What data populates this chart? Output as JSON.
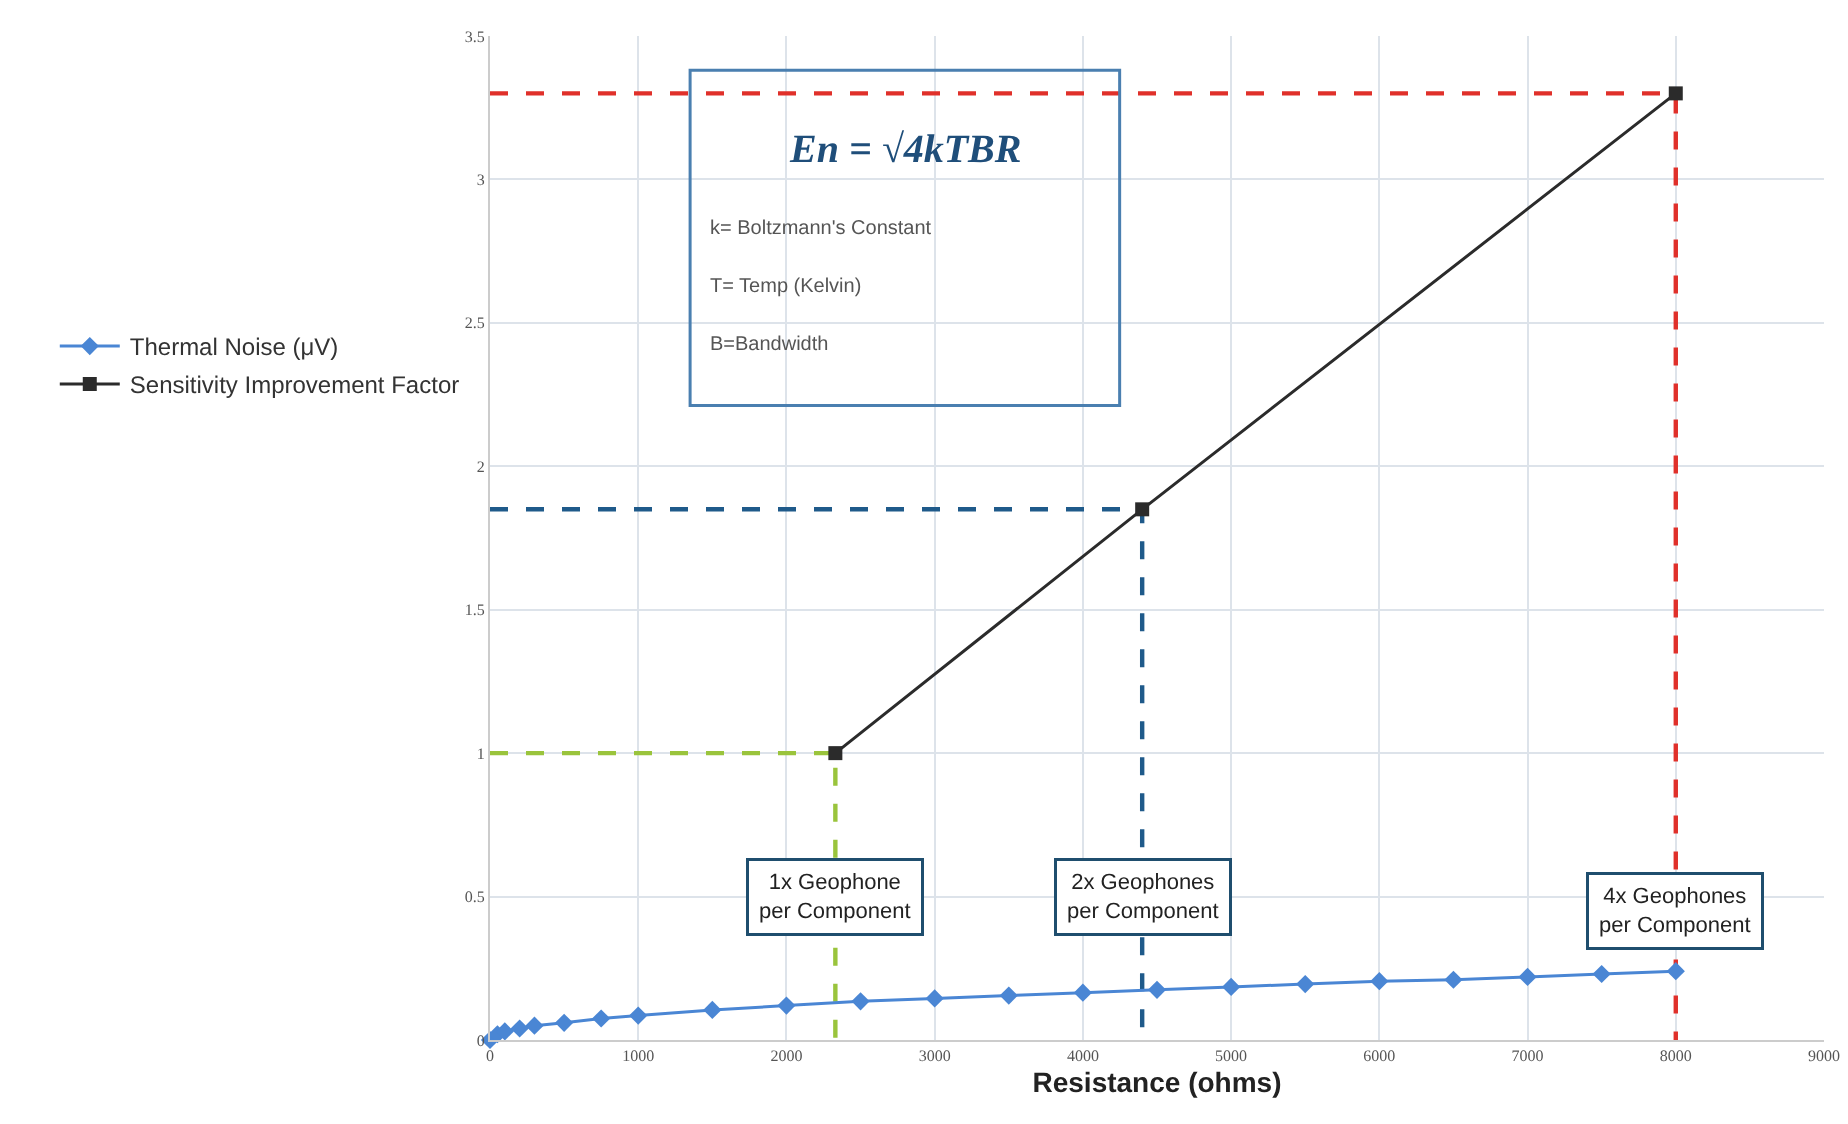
{
  "chart_data": {
    "type": "line",
    "xlabel": "Resistance (ohms)",
    "xlim": [
      0,
      9000
    ],
    "xticks": [
      0,
      1000,
      2000,
      3000,
      4000,
      5000,
      6000,
      7000,
      8000,
      9000
    ],
    "ylim": [
      0,
      3.5
    ],
    "yticks": [
      0,
      0.5,
      1,
      1.5,
      2,
      2.5,
      3,
      3.5
    ],
    "grid": true,
    "legend": "left",
    "series": [
      {
        "name": "Thermal Noise (μV)",
        "color": "#4a86d4",
        "marker": "diamond",
        "x": [
          0,
          50,
          100,
          200,
          300,
          500,
          750,
          1000,
          1500,
          2000,
          2500,
          3000,
          3500,
          4000,
          4500,
          5000,
          5500,
          6000,
          6500,
          7000,
          7500,
          8000
        ],
        "values": [
          0,
          0.02,
          0.03,
          0.04,
          0.05,
          0.06,
          0.075,
          0.085,
          0.105,
          0.12,
          0.135,
          0.145,
          0.155,
          0.165,
          0.175,
          0.185,
          0.195,
          0.205,
          0.21,
          0.22,
          0.23,
          0.24
        ]
      },
      {
        "name": "Sensitivity Improvement Factor",
        "color": "#2b2b2b",
        "marker": "square",
        "x": [
          2330,
          4400,
          8000
        ],
        "values": [
          1,
          1.85,
          3.3
        ]
      },
      {
        "color": "#9ac43c",
        "marker": "none",
        "line_style": "dashed",
        "x": [
          0,
          2330,
          2330
        ],
        "values": [
          1,
          1,
          0
        ]
      },
      {
        "color": "#1f5a8a",
        "marker": "none",
        "line_style": "dashed",
        "x": [
          0,
          4400,
          4400
        ],
        "values": [
          1.85,
          1.85,
          0
        ]
      },
      {
        "color": "#e0302a",
        "marker": "none",
        "line_style": "dashed",
        "x": [
          0,
          8000,
          8000
        ],
        "values": [
          3.3,
          3.3,
          0
        ]
      }
    ],
    "annotations": [
      "En = √4kTBR",
      "k= Boltzmann's Constant",
      "T= Temp (Kelvin)",
      "B=Bandwidth",
      {
        "text": "1x Geophone\nper Component",
        "x": 2330,
        "y": 0.5
      },
      {
        "text": "2x Geophones\nper Component",
        "x": 4400,
        "y": 0.5
      },
      {
        "text": "4x Geophones\nper Component",
        "x": 8000,
        "y": 0.45
      }
    ]
  }
}
